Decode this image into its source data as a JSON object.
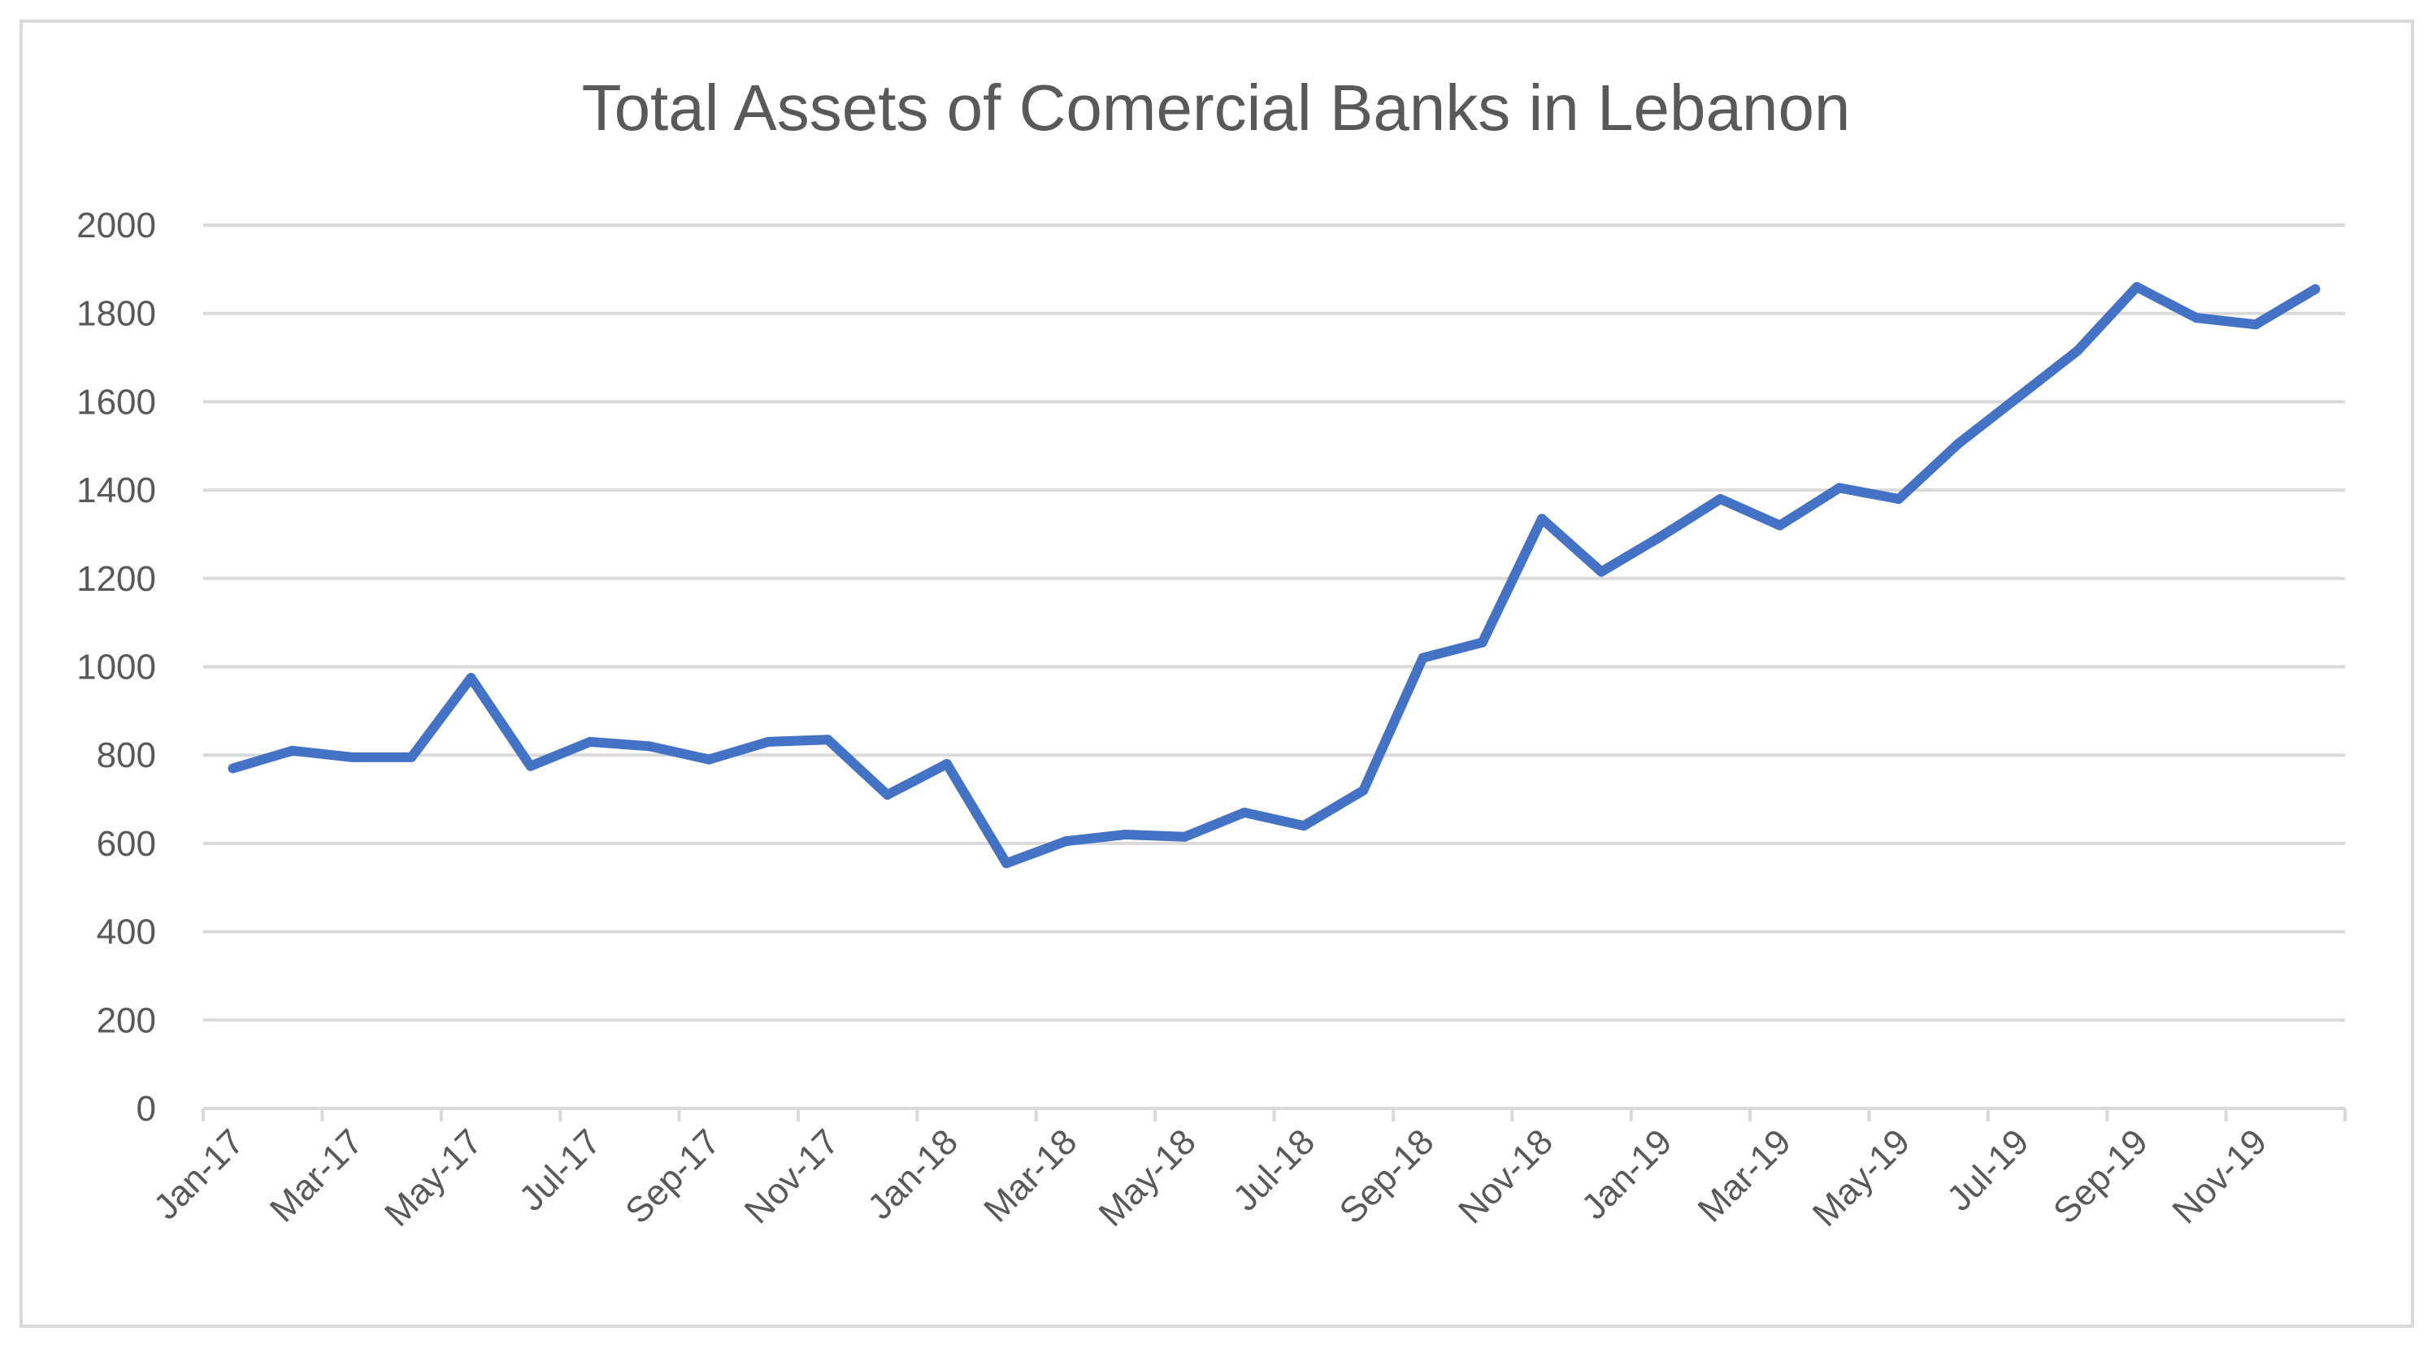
{
  "chart_data": {
    "type": "line",
    "title": "Total Assets of Comercial Banks in Lebanon",
    "xlabel": "",
    "ylabel": "",
    "ylim": [
      0,
      2000
    ],
    "y_ticks": [
      0,
      200,
      400,
      600,
      800,
      1000,
      1200,
      1400,
      1600,
      1800,
      2000
    ],
    "y_tick_labels": [
      "0",
      "200",
      "400",
      "600",
      "800",
      "1000",
      "1200",
      "1400",
      "1600",
      "1800",
      "2000"
    ],
    "grid": true,
    "legend": "none",
    "line_color": "#4472C4",
    "categories": [
      "Jan-17",
      "Feb-17",
      "Mar-17",
      "Apr-17",
      "May-17",
      "Jun-17",
      "Jul-17",
      "Aug-17",
      "Sep-17",
      "Oct-17",
      "Nov-17",
      "Dec-17",
      "Jan-18",
      "Feb-18",
      "Mar-18",
      "Apr-18",
      "May-18",
      "Jun-18",
      "Jul-18",
      "Aug-18",
      "Sep-18",
      "Oct-18",
      "Nov-18",
      "Dec-18",
      "Jan-19",
      "Feb-19",
      "Mar-19",
      "Apr-19",
      "May-19",
      "Jun-19",
      "Jul-19",
      "Aug-19",
      "Sep-19",
      "Oct-19",
      "Nov-19",
      "Dec-19"
    ],
    "x_tick_labels": [
      "Jan-17",
      "Mar-17",
      "May-17",
      "Jul-17",
      "Sep-17",
      "Nov-17",
      "Jan-18",
      "Mar-18",
      "May-18",
      "Jul-18",
      "Sep-18",
      "Nov-18",
      "Jan-19",
      "Mar-19",
      "May-19",
      "Jul-19",
      "Sep-19",
      "Nov-19"
    ],
    "series": [
      {
        "name": "Total Assets",
        "values": [
          770,
          810,
          795,
          795,
          975,
          775,
          830,
          820,
          790,
          830,
          835,
          710,
          780,
          555,
          605,
          620,
          615,
          670,
          640,
          720,
          1020,
          1055,
          1335,
          1215,
          1295,
          1380,
          1320,
          1405,
          1380,
          1505,
          1610,
          1715,
          1860,
          1790,
          1775,
          1855
        ]
      }
    ]
  }
}
